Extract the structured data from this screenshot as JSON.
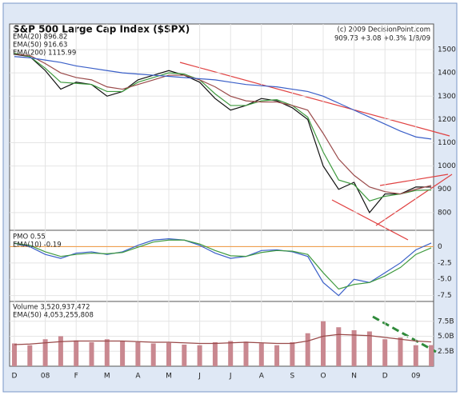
{
  "chart_data": [
    {
      "type": "line",
      "title": "S&P 500 Large Cap Index ($SPX)",
      "copyright": "(c) 2009 DecisionPoint.com",
      "quote": "909.73 +3.08 +0.3% 1/8/09",
      "categories": [
        "D",
        null,
        "08",
        null,
        "F",
        null,
        "M",
        null,
        "A",
        null,
        "M",
        null,
        "J",
        null,
        "J",
        null,
        "A",
        null,
        "S",
        null,
        "O",
        null,
        "N",
        null,
        "D",
        null,
        "09",
        null
      ],
      "ylim": [
        724,
        1610
      ],
      "yticks": [
        800,
        900,
        1000,
        1100,
        1200,
        1300,
        1400,
        1500
      ],
      "series": [
        {
          "color": "#111111",
          "values": [
            1480,
            1470,
            1410,
            1330,
            1360,
            1350,
            1300,
            1320,
            1370,
            1390,
            1410,
            1390,
            1360,
            1290,
            1240,
            1260,
            1290,
            1280,
            1250,
            1200,
            1000,
            900,
            930,
            800,
            880,
            880,
            910,
            909.73
          ]
        },
        {
          "name": "EMA(20) 896.82",
          "color": "#3f9a3f",
          "values": [
            1485,
            1470,
            1420,
            1360,
            1355,
            1350,
            1320,
            1320,
            1360,
            1380,
            1400,
            1395,
            1370,
            1310,
            1260,
            1260,
            1280,
            1285,
            1260,
            1210,
            1060,
            940,
            920,
            850,
            870,
            880,
            895,
            896.82
          ]
        },
        {
          "name": "EMA(50) 916.63",
          "color": "#9a4a4a",
          "values": [
            1480,
            1475,
            1440,
            1400,
            1380,
            1370,
            1340,
            1330,
            1350,
            1370,
            1390,
            1390,
            1370,
            1340,
            1300,
            1280,
            1275,
            1275,
            1260,
            1240,
            1140,
            1030,
            960,
            910,
            890,
            880,
            900,
            916.63
          ]
        },
        {
          "name": "EMA(200) 1115.99",
          "color": "#3a5fc8",
          "values": [
            1470,
            1465,
            1455,
            1445,
            1430,
            1420,
            1410,
            1400,
            1395,
            1390,
            1385,
            1380,
            1375,
            1370,
            1360,
            1350,
            1345,
            1340,
            1330,
            1320,
            1300,
            1270,
            1240,
            1210,
            1180,
            1150,
            1125,
            1115.99
          ]
        }
      ]
    },
    {
      "type": "line",
      "ylim": [
        -8.4,
        2.5
      ],
      "yticks": [
        0,
        -2.5,
        {
          "value": -5,
          "label": "-5.0"
        },
        -7.5
      ],
      "zero_line": "#f0a050",
      "series": [
        {
          "name": "PMO 0.55",
          "color": "#3a5fc8",
          "values": [
            0.5,
            0,
            -1.2,
            -1.8,
            -1.0,
            -0.8,
            -1.2,
            -0.8,
            0.2,
            1.0,
            1.2,
            1.0,
            0.2,
            -1.0,
            -1.8,
            -1.5,
            -0.6,
            -0.5,
            -0.8,
            -1.5,
            -5.5,
            -7.5,
            -5.0,
            -5.5,
            -4.0,
            -2.5,
            -0.5,
            0.55
          ]
        },
        {
          "name": "EMA(10) -0.19",
          "color": "#3f9a3f",
          "values": [
            0.5,
            0.2,
            -0.8,
            -1.5,
            -1.2,
            -1.0,
            -1.1,
            -0.9,
            -0.1,
            0.7,
            1.0,
            1.0,
            0.4,
            -0.6,
            -1.4,
            -1.5,
            -0.9,
            -0.6,
            -0.7,
            -1.2,
            -4.0,
            -6.5,
            -5.8,
            -5.5,
            -4.5,
            -3.2,
            -1.2,
            -0.19
          ]
        }
      ]
    },
    {
      "type": "bar",
      "ylim": [
        0,
        10.8
      ],
      "yticks": [
        {
          "value": 2.5,
          "label": "2.5B"
        },
        {
          "value": 5,
          "label": "5.0B"
        },
        {
          "value": 7.5,
          "label": "7.5B"
        }
      ],
      "series": [
        {
          "name": "Volume 3,520,937,472",
          "color": "#c98890",
          "values": [
            3.8,
            3.5,
            4.5,
            5.0,
            4.3,
            4.0,
            4.5,
            4.2,
            4.0,
            3.8,
            3.9,
            3.6,
            3.5,
            4.0,
            4.2,
            4.1,
            3.8,
            3.5,
            4.0,
            5.5,
            7.5,
            6.5,
            6.0,
            5.8,
            4.5,
            4.8,
            3.5,
            3.52
          ]
        },
        {
          "name": "EMA(50) 4,053,255,808",
          "type": "line",
          "color": "#9a4a4a",
          "values": [
            3.6,
            3.7,
            3.9,
            4.1,
            4.2,
            4.2,
            4.2,
            4.2,
            4.1,
            4.0,
            4.0,
            3.9,
            3.8,
            3.8,
            3.9,
            4.0,
            3.9,
            3.8,
            3.8,
            4.2,
            5.0,
            5.3,
            5.2,
            5.1,
            4.8,
            4.5,
            4.2,
            4.05
          ]
        }
      ]
    }
  ]
}
